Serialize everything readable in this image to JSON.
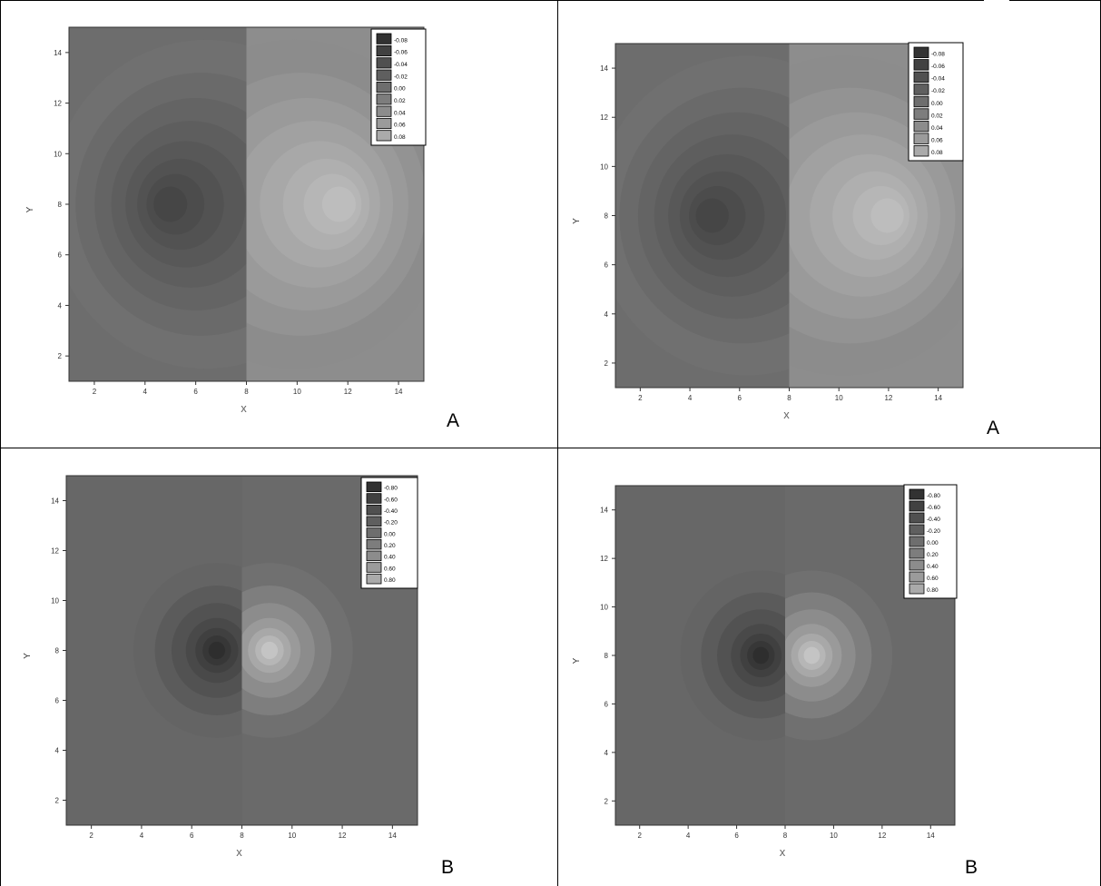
{
  "figure": {
    "panels": [
      {
        "label": "A"
      },
      {
        "label": "A"
      },
      {
        "label": "B"
      },
      {
        "label": "B"
      }
    ]
  },
  "chart_data": [
    {
      "type": "heatmap",
      "title": "",
      "xlabel": "x",
      "ylabel": "Y",
      "xlim": [
        1,
        15
      ],
      "ylim": [
        1,
        15
      ],
      "xticks": [
        "2",
        "4",
        "6",
        "8",
        "10",
        "12",
        "14"
      ],
      "yticks": [
        "2",
        "4",
        "6",
        "8",
        "10",
        "12",
        "14"
      ],
      "legend_position": "top-right",
      "legend": [
        "-0.08",
        "-0.06",
        "-0.04",
        "-0.02",
        "0.00",
        "0.02",
        "0.04",
        "0.06",
        "0.08"
      ],
      "panel_label": "A",
      "field": {
        "shape": "dipole",
        "neg_center": [
          6.4,
          8
        ],
        "pos_center": [
          9.9,
          8
        ],
        "discontinuity_x": 8,
        "peak": 0.08
      }
    },
    {
      "type": "heatmap",
      "title": "",
      "xlabel": "x",
      "ylabel": "Y",
      "xlim": [
        1,
        15
      ],
      "ylim": [
        1,
        15
      ],
      "xticks": [
        "2",
        "4",
        "6",
        "8",
        "10",
        "12",
        "14"
      ],
      "yticks": [
        "2",
        "4",
        "6",
        "8",
        "10",
        "12",
        "14"
      ],
      "legend_position": "top-right",
      "legend": [
        "-0.08",
        "-0.06",
        "-0.04",
        "-0.02",
        "0.00",
        "0.02",
        "0.04",
        "0.06",
        "0.08"
      ],
      "panel_label": "A",
      "field": {
        "shape": "dipole",
        "neg_center": [
          6.3,
          8
        ],
        "pos_center": [
          10.2,
          8
        ],
        "discontinuity_x": 8,
        "peak": 0.08
      }
    },
    {
      "type": "heatmap",
      "title": "",
      "xlabel": "x",
      "ylabel": "Y",
      "xlim": [
        1,
        15
      ],
      "ylim": [
        1,
        15
      ],
      "xticks": [
        "2",
        "4",
        "6",
        "8",
        "10",
        "12",
        "14"
      ],
      "yticks": [
        "2",
        "4",
        "6",
        "8",
        "10",
        "12",
        "14"
      ],
      "legend_position": "top-right",
      "legend": [
        "-0.80",
        "-0.60",
        "-0.40",
        "-0.20",
        "0.00",
        "0.20",
        "0.40",
        "0.60",
        "0.80"
      ],
      "panel_label": "B",
      "field": {
        "shape": "dipole",
        "neg_center": [
          7,
          8
        ],
        "pos_center": [
          9.1,
          8
        ],
        "discontinuity_x": 8,
        "peak": 0.8
      }
    },
    {
      "type": "heatmap",
      "title": "",
      "xlabel": "x",
      "ylabel": "Y",
      "xlim": [
        1,
        15
      ],
      "ylim": [
        1,
        15
      ],
      "xticks": [
        "2",
        "4",
        "6",
        "8",
        "10",
        "12",
        "14"
      ],
      "yticks": [
        "2",
        "4",
        "6",
        "8",
        "10",
        "12",
        "14"
      ],
      "legend_position": "top-right",
      "legend": [
        "-0.80",
        "-0.60",
        "-0.40",
        "-0.20",
        "0.00",
        "0.20",
        "0.40",
        "0.60",
        "0.80"
      ],
      "panel_label": "B",
      "field": {
        "shape": "dipole",
        "neg_center": [
          7,
          8
        ],
        "pos_center": [
          9.1,
          8
        ],
        "discontinuity_x": 8,
        "peak": 0.8
      }
    }
  ]
}
